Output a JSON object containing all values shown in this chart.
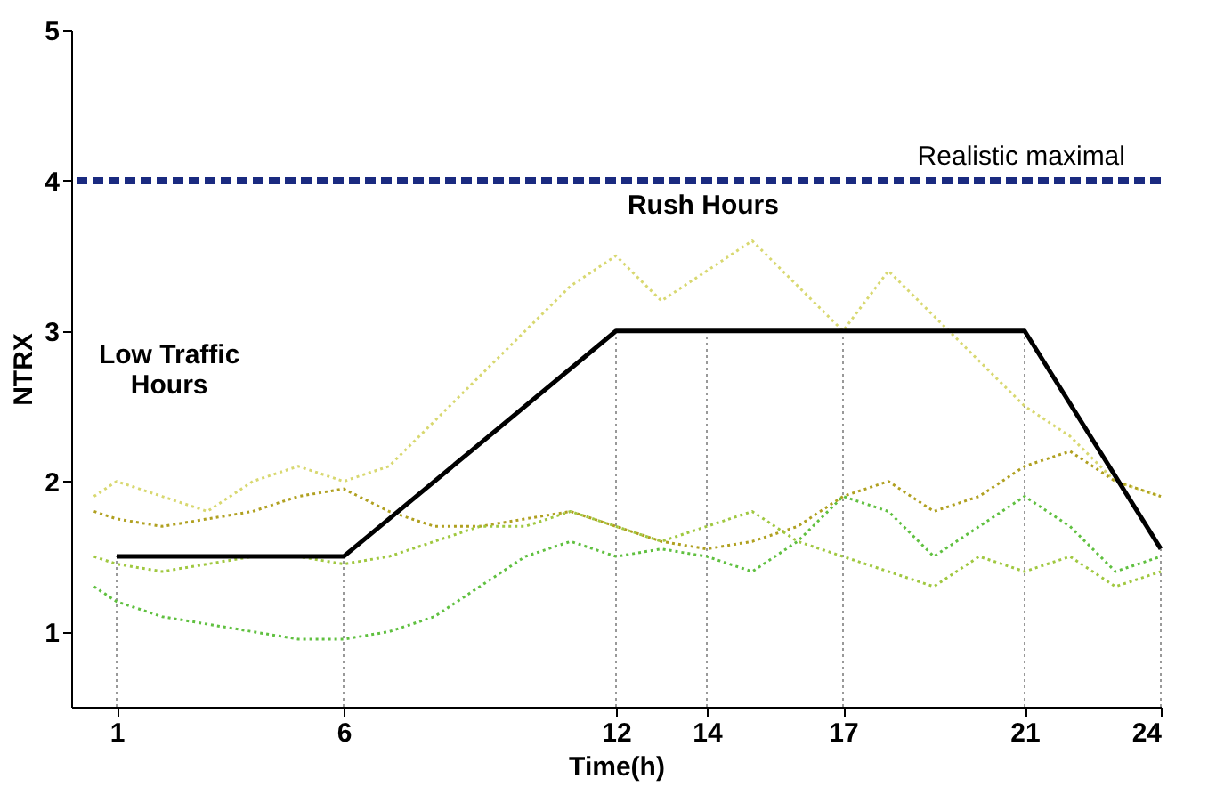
{
  "chart_data": {
    "type": "line",
    "xlabel": "Time(h)",
    "ylabel": "NTRX",
    "xlim": [
      0,
      24
    ],
    "ylim": [
      0.5,
      5
    ],
    "xticks": [
      1,
      6,
      12,
      14,
      17,
      21,
      24
    ],
    "yticks": [
      1,
      2,
      3,
      4,
      5
    ],
    "grid": false,
    "marker": "none",
    "series": [
      {
        "color": "#d8d870",
        "line_style": "dotted",
        "x": [
          0.5,
          1,
          2,
          3,
          4,
          5,
          6,
          7,
          8,
          9,
          10,
          11,
          12,
          13,
          14,
          15,
          16,
          17,
          18,
          19,
          20,
          21,
          22,
          23,
          24
        ],
        "values": [
          1.9,
          2.0,
          1.9,
          1.8,
          2.0,
          2.1,
          2.0,
          2.1,
          2.4,
          2.7,
          3.0,
          3.3,
          3.5,
          3.2,
          3.4,
          3.6,
          3.3,
          3.0,
          3.4,
          3.1,
          2.8,
          2.5,
          2.3,
          2.0,
          1.9
        ]
      },
      {
        "color": "#b0a020",
        "line_style": "dotted",
        "x": [
          0.5,
          1,
          2,
          3,
          4,
          5,
          6,
          7,
          8,
          9,
          10,
          11,
          12,
          13,
          14,
          15,
          16,
          17,
          18,
          19,
          20,
          21,
          22,
          23,
          24
        ],
        "values": [
          1.8,
          1.75,
          1.7,
          1.75,
          1.8,
          1.9,
          1.95,
          1.8,
          1.7,
          1.7,
          1.75,
          1.8,
          1.7,
          1.6,
          1.55,
          1.6,
          1.7,
          1.9,
          2.0,
          1.8,
          1.9,
          2.1,
          2.2,
          2.0,
          1.9
        ]
      },
      {
        "color": "#60c040",
        "line_style": "dotted",
        "x": [
          0.5,
          1,
          2,
          3,
          4,
          5,
          6,
          7,
          8,
          9,
          10,
          11,
          12,
          13,
          14,
          15,
          16,
          17,
          18,
          19,
          20,
          21,
          22,
          23,
          24
        ],
        "values": [
          1.3,
          1.2,
          1.1,
          1.05,
          1.0,
          0.95,
          0.95,
          1.0,
          1.1,
          1.3,
          1.5,
          1.6,
          1.5,
          1.55,
          1.5,
          1.4,
          1.6,
          1.9,
          1.8,
          1.5,
          1.7,
          1.9,
          1.7,
          1.4,
          1.5
        ]
      },
      {
        "color": "#a0c840",
        "line_style": "dotted",
        "x": [
          0.5,
          1,
          2,
          3,
          4,
          5,
          6,
          7,
          8,
          9,
          10,
          11,
          12,
          13,
          14,
          15,
          16,
          17,
          18,
          19,
          20,
          21,
          22,
          23,
          24
        ],
        "values": [
          1.5,
          1.45,
          1.4,
          1.45,
          1.5,
          1.5,
          1.45,
          1.5,
          1.6,
          1.7,
          1.7,
          1.8,
          1.7,
          1.6,
          1.7,
          1.8,
          1.6,
          1.5,
          1.4,
          1.3,
          1.5,
          1.4,
          1.5,
          1.3,
          1.4
        ]
      },
      {
        "color": "#000000",
        "line_style": "solid",
        "x": [
          1,
          6,
          12,
          14,
          17,
          21,
          24
        ],
        "values": [
          1.5,
          1.5,
          3,
          3,
          3,
          3,
          1.55
        ]
      }
    ],
    "ref_lines": [
      {
        "axis": "y",
        "value": 4,
        "label": "Realistic maximal",
        "color": "#1a2a80",
        "line_style": "dashed"
      },
      {
        "axis": "x",
        "value": 1,
        "color": "#999999",
        "line_style": "dotted"
      },
      {
        "axis": "x",
        "value": 6,
        "color": "#999999",
        "line_style": "dotted"
      },
      {
        "axis": "x",
        "value": 12,
        "color": "#999999",
        "line_style": "dotted"
      },
      {
        "axis": "x",
        "value": 14,
        "color": "#999999",
        "line_style": "dotted"
      },
      {
        "axis": "x",
        "value": 17,
        "color": "#999999",
        "line_style": "dotted"
      },
      {
        "axis": "x",
        "value": 21,
        "color": "#999999",
        "line_style": "dotted"
      },
      {
        "axis": "x",
        "value": 24,
        "color": "#999999",
        "line_style": "dotted"
      }
    ],
    "annotations": [
      "Rush Hours",
      "Low Traffic\nHours"
    ]
  }
}
